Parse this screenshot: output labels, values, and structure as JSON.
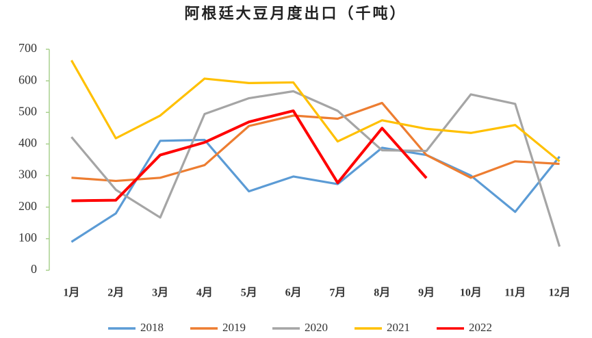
{
  "chart_data": {
    "type": "line",
    "title": "阿根廷大豆月度出口（千吨）",
    "categories": [
      "1月",
      "2月",
      "3月",
      "4月",
      "5月",
      "6月",
      "7月",
      "8月",
      "9月",
      "10月",
      "11月",
      "12月"
    ],
    "series": [
      {
        "name": "2018",
        "color": "#5b9bd5",
        "values": [
          90,
          180,
          410,
          413,
          250,
          297,
          273,
          388,
          365,
          300,
          185,
          360
        ]
      },
      {
        "name": "2019",
        "color": "#ed7d31",
        "values": [
          293,
          283,
          293,
          333,
          457,
          490,
          480,
          530,
          365,
          293,
          345,
          337
        ]
      },
      {
        "name": "2020",
        "color": "#a5a5a5",
        "values": [
          422,
          255,
          167,
          495,
          545,
          567,
          505,
          380,
          378,
          557,
          527,
          75
        ]
      },
      {
        "name": "2021",
        "color": "#ffc000",
        "values": [
          665,
          418,
          490,
          607,
          593,
          595,
          408,
          475,
          448,
          435,
          460,
          345
        ]
      },
      {
        "name": "2022",
        "color": "#ff0000",
        "values": [
          220,
          222,
          365,
          405,
          470,
          505,
          277,
          450,
          292,
          null,
          null,
          null
        ]
      }
    ],
    "ylim": [
      0,
      700
    ],
    "yticks": [
      0,
      100,
      200,
      300,
      400,
      500,
      600,
      700
    ],
    "grid": false,
    "legend": "bottom"
  }
}
